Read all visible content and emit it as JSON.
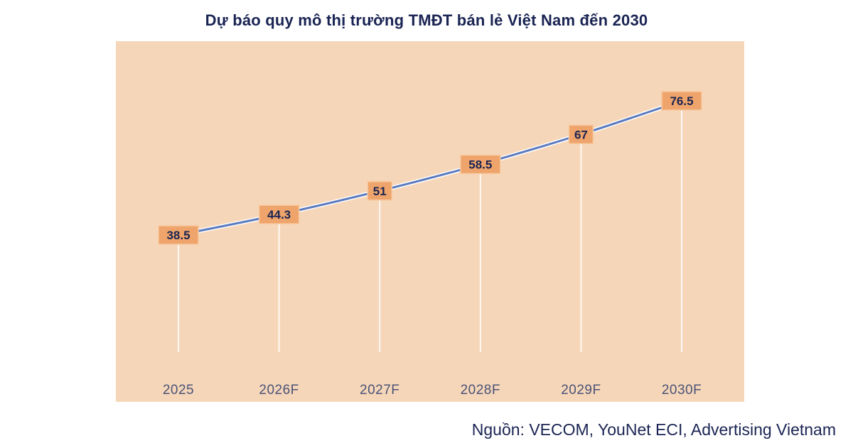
{
  "chart_data": {
    "type": "line",
    "title": "Dự báo quy mô thị trường TMĐT bán lẻ Việt Nam đến 2030",
    "categories": [
      "2025",
      "2026F",
      "2027F",
      "2028F",
      "2029F",
      "2030F"
    ],
    "values": [
      38.5,
      44.3,
      51,
      58.5,
      67,
      76.5
    ],
    "value_labels": [
      "38.5",
      "44.3",
      "51",
      "58.5",
      "67",
      "76.5"
    ],
    "xlabel": "",
    "ylabel": "",
    "ylim": [
      0,
      90
    ],
    "grid": false,
    "legend": "none",
    "colors": {
      "plot_background": "#f6d6b8",
      "line": "#5b7bbf",
      "label_box": "#eea46a",
      "label_text": "#1a2453",
      "tick_text": "#4a5378",
      "drop_line": "#ffffff"
    }
  },
  "source_text": "Nguồn: VECOM, YouNet ECI, Advertising Vietnam"
}
